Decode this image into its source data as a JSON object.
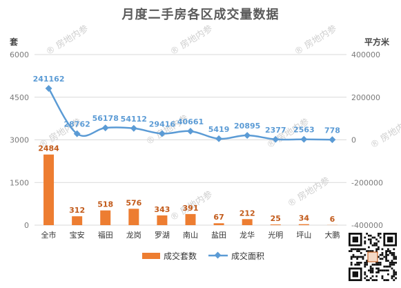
{
  "title": "月度二手房各区成交量数据",
  "colors": {
    "bar": "#ed7d31",
    "line": "#5b9bd5",
    "title": "#5a5a5a"
  },
  "watermark_text": "房地内参",
  "chart_data": {
    "type": "bar+line",
    "categories": [
      "全市",
      "宝安",
      "福田",
      "龙岗",
      "罗湖",
      "南山",
      "盐田",
      "龙华",
      "光明",
      "坪山",
      "大鹏"
    ],
    "left_axis": {
      "unit": "套",
      "ylim": [
        0,
        6000
      ],
      "ticks": [
        "0",
        "1500",
        "3000",
        "4500",
        "6000"
      ]
    },
    "right_axis": {
      "unit": "平方米",
      "ylim": [
        -400000,
        400000
      ],
      "ticks": [
        "-400000",
        "-200000",
        "0",
        "200000",
        "400000"
      ]
    },
    "series": [
      {
        "name": "成交套数",
        "type": "bar",
        "axis": "left",
        "values": [
          2484,
          312,
          518,
          576,
          343,
          391,
          67,
          212,
          25,
          34,
          6
        ]
      },
      {
        "name": "成交面积",
        "type": "line",
        "axis": "right",
        "values": [
          241162,
          28762,
          56178,
          54112,
          29416,
          40661,
          5419,
          20895,
          2377,
          2563,
          778
        ]
      }
    ],
    "grid": true,
    "legend": "bottom"
  }
}
